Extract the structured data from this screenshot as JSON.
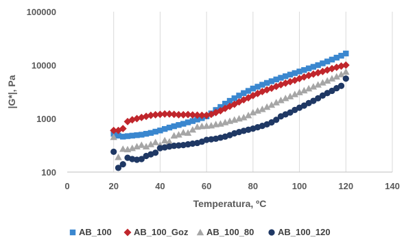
{
  "chart_data": {
    "type": "scatter",
    "xlabel": "Temperatura, ºC",
    "ylabel": "|G*|, Pa",
    "xlim": [
      0,
      140
    ],
    "ylim": [
      100,
      100000
    ],
    "yscale": "log",
    "xticks": [
      "0",
      "20",
      "40",
      "60",
      "80",
      "100",
      "120",
      "140"
    ],
    "yticks": [
      "100",
      "1000",
      "10000",
      "100000"
    ],
    "grid": "vertical",
    "legend_position": "bottom",
    "series": [
      {
        "name": "AB_100",
        "color": "#3A87CF",
        "marker": "square",
        "x": [
          20,
          22,
          24,
          26,
          28,
          30,
          32,
          34,
          36,
          38,
          40,
          42,
          44,
          46,
          48,
          50,
          52,
          54,
          56,
          58,
          60,
          62,
          64,
          66,
          68,
          70,
          72,
          74,
          76,
          78,
          80,
          82,
          84,
          86,
          88,
          90,
          92,
          94,
          96,
          98,
          100,
          102,
          104,
          106,
          108,
          110,
          112,
          114,
          116,
          118,
          120
        ],
        "y": [
          520,
          480,
          460,
          470,
          480,
          490,
          500,
          520,
          540,
          570,
          600,
          640,
          680,
          720,
          760,
          800,
          850,
          900,
          960,
          1020,
          1100,
          1250,
          1450,
          1650,
          1900,
          2150,
          2400,
          2700,
          3000,
          3300,
          3650,
          3950,
          4300,
          4650,
          5000,
          5400,
          5800,
          6200,
          6650,
          7100,
          7600,
          8100,
          8700,
          9300,
          10000,
          10800,
          11700,
          12700,
          13800,
          15000,
          16500
        ]
      },
      {
        "name": "AB_100_Goz",
        "color": "#C0262C",
        "marker": "diamond",
        "x": [
          20,
          22,
          24,
          26,
          28,
          30,
          32,
          34,
          36,
          38,
          40,
          42,
          44,
          46,
          48,
          50,
          52,
          54,
          56,
          58,
          60,
          62,
          64,
          66,
          68,
          70,
          72,
          74,
          76,
          78,
          80,
          82,
          84,
          86,
          88,
          90,
          92,
          94,
          96,
          98,
          100,
          102,
          104,
          106,
          108,
          110,
          112,
          114,
          116,
          118,
          120
        ],
        "y": [
          600,
          600,
          650,
          880,
          950,
          1000,
          1050,
          1100,
          1150,
          1180,
          1200,
          1220,
          1220,
          1200,
          1180,
          1180,
          1190,
          1170,
          1160,
          1150,
          1150,
          1200,
          1300,
          1400,
          1550,
          1700,
          1850,
          2050,
          2250,
          2450,
          2700,
          2950,
          3200,
          3450,
          3700,
          4000,
          4300,
          4600,
          4900,
          5200,
          5600,
          6000,
          6400,
          6800,
          7200,
          7600,
          8100,
          8600,
          9100,
          9600,
          10000
        ]
      },
      {
        "name": "AB_100_80",
        "color": "#A6A6A6",
        "marker": "triangle",
        "x": [
          20,
          22,
          24,
          26,
          28,
          30,
          32,
          34,
          36,
          38,
          40,
          42,
          44,
          46,
          48,
          50,
          52,
          54,
          56,
          58,
          60,
          62,
          64,
          66,
          68,
          70,
          72,
          74,
          76,
          78,
          80,
          82,
          84,
          86,
          88,
          90,
          92,
          94,
          96,
          98,
          100,
          102,
          104,
          106,
          108,
          110,
          112,
          114,
          116,
          118,
          120
        ],
        "y": [
          450,
          190,
          270,
          265,
          280,
          300,
          320,
          300,
          330,
          360,
          320,
          390,
          370,
          480,
          500,
          550,
          540,
          620,
          700,
          720,
          730,
          740,
          780,
          800,
          850,
          900,
          950,
          1000,
          1050,
          1150,
          1300,
          1400,
          1500,
          1650,
          1800,
          2000,
          2200,
          2400,
          2600,
          2850,
          3100,
          3350,
          3650,
          3950,
          4300,
          4700,
          5100,
          5600,
          6100,
          6700,
          7500
        ]
      },
      {
        "name": "AB_100_120",
        "color": "#1F3864",
        "marker": "circle",
        "x": [
          20,
          22,
          24,
          26,
          28,
          30,
          32,
          34,
          36,
          38,
          40,
          42,
          44,
          46,
          48,
          50,
          52,
          54,
          56,
          58,
          60,
          62,
          64,
          66,
          68,
          70,
          72,
          74,
          76,
          78,
          80,
          82,
          84,
          86,
          88,
          90,
          92,
          94,
          96,
          98,
          100,
          102,
          104,
          106,
          108,
          110,
          112,
          114,
          116,
          118,
          120
        ],
        "y": [
          240,
          120,
          140,
          185,
          175,
          170,
          175,
          200,
          215,
          230,
          280,
          290,
          300,
          310,
          315,
          320,
          330,
          340,
          350,
          370,
          400,
          410,
          420,
          440,
          460,
          490,
          530,
          560,
          590,
          620,
          650,
          690,
          730,
          780,
          850,
          950,
          1100,
          1200,
          1300,
          1450,
          1600,
          1750,
          1950,
          2150,
          2400,
          2700,
          3000,
          3300,
          3700,
          4100,
          5600
        ]
      }
    ]
  }
}
